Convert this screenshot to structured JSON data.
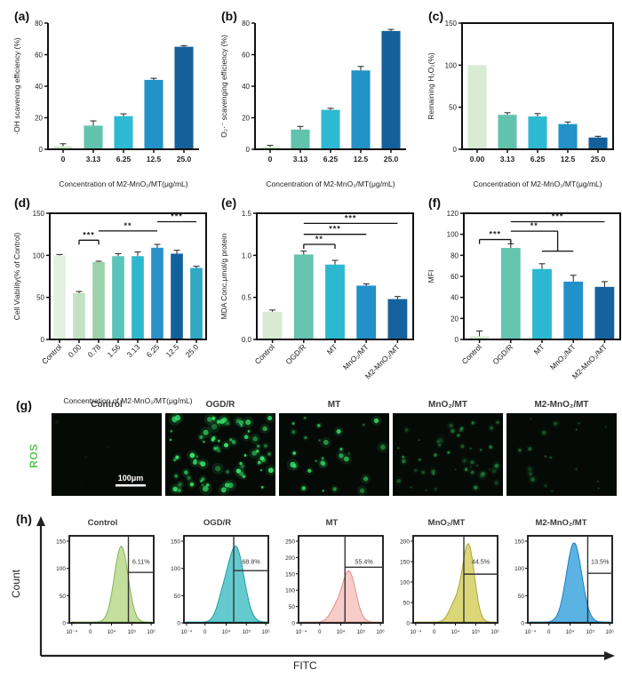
{
  "chart_data": [
    {
      "id": "a",
      "panel_letter": "(a)",
      "type": "bar",
      "title": "",
      "ylabel": "·OH scavening efficiency (%)",
      "xlabel": "Concentration of M2-MnO₂/MT(μg/mL)",
      "categories": [
        "0",
        "3.13",
        "6.25",
        "12.5",
        "25.0"
      ],
      "values": [
        2,
        15,
        21,
        44,
        65
      ],
      "errors": [
        1.5,
        3,
        1.5,
        1,
        0.7
      ],
      "ylim": [
        0,
        80
      ],
      "yticks": [
        0,
        20,
        40,
        60,
        80
      ],
      "bar_colors": [
        "#d3e8cf",
        "#62c3ad",
        "#2db9d2",
        "#2292c9",
        "#15609b"
      ],
      "boxed": false,
      "rotate_labels": false,
      "sig": []
    },
    {
      "id": "b",
      "panel_letter": "(b)",
      "type": "bar",
      "title": "",
      "ylabel": "O₂·⁻ scavenging efficiency (%)",
      "xlabel": "Concentration of M2-MnO₂/MT(μg/mL)",
      "categories": [
        "0",
        "3.13",
        "6.25",
        "12.5",
        "25.0"
      ],
      "values": [
        1.5,
        12.5,
        25,
        50,
        75
      ],
      "errors": [
        1,
        2,
        1,
        2.5,
        1
      ],
      "ylim": [
        0,
        80
      ],
      "yticks": [
        0,
        20,
        40,
        60,
        80
      ],
      "bar_colors": [
        "#d3e8cf",
        "#62c3ad",
        "#2db9d2",
        "#2292c9",
        "#15609b"
      ],
      "boxed": false,
      "rotate_labels": false,
      "sig": []
    },
    {
      "id": "c",
      "panel_letter": "(c)",
      "type": "bar",
      "title": "",
      "ylabel": "Remaining H₂O₂(%)",
      "xlabel": "Concentration of M2-MnO₂/MT(μg/mL)",
      "categories": [
        "0.00",
        "3.13",
        "6.25",
        "12.5",
        "25.0"
      ],
      "values": [
        100,
        41,
        39,
        30,
        14
      ],
      "errors": [
        0,
        2.5,
        3.5,
        2.5,
        1.5
      ],
      "ylim": [
        0,
        150
      ],
      "yticks": [
        0,
        50,
        100,
        150
      ],
      "bar_colors": [
        "#d8ecd4",
        "#62c3ad",
        "#2db9d2",
        "#2292c9",
        "#15609b"
      ],
      "boxed": true,
      "rotate_labels": false,
      "sig": []
    },
    {
      "id": "d",
      "panel_letter": "(d)",
      "type": "bar",
      "title": "",
      "ylabel": "Cell Viability(% of Control)",
      "xlabel": "Concentration of M2-MnO₂/MT(μg/mL)",
      "categories": [
        "Control",
        "0.00",
        "0.78",
        "1.56",
        "3.13",
        "6.25",
        "12.5",
        "25.0"
      ],
      "values": [
        100,
        55,
        92,
        99,
        99,
        109,
        102,
        85
      ],
      "errors": [
        1,
        2,
        1,
        3,
        5,
        4,
        4,
        2
      ],
      "ylim": [
        0,
        150
      ],
      "yticks": [
        0,
        50,
        100,
        150
      ],
      "bar_colors": [
        "#e4f0e2",
        "#c3e2c4",
        "#9dd1ab",
        "#5ac4b7",
        "#2eb6ce",
        "#2a90c8",
        "#11619d",
        "#2fa9c4"
      ],
      "boxed": true,
      "rotate_labels": true,
      "sig": [
        {
          "from": 1,
          "to": 2,
          "y": 118,
          "label": "***",
          "ticks": true
        },
        {
          "from": 2,
          "to": 5,
          "y": 129,
          "label": "**"
        },
        {
          "from": 5,
          "to": 7,
          "y": 140,
          "label": "***"
        }
      ]
    },
    {
      "id": "e",
      "panel_letter": "(e)",
      "type": "bar",
      "title": "",
      "ylabel": "MDA Conc.μmol/g protein",
      "xlabel": "",
      "categories": [
        "Control",
        "OGD/R",
        "MT",
        "MnO₂/MT",
        "M2-MnO₂/MT"
      ],
      "values": [
        0.33,
        1.01,
        0.89,
        0.64,
        0.48
      ],
      "errors": [
        0.02,
        0.04,
        0.05,
        0.02,
        0.03
      ],
      "ylim": [
        0,
        1.5
      ],
      "yticks": [
        0,
        0.5,
        1,
        1.5
      ],
      "ytick_labels": [
        "0.0",
        "0.5",
        "1.0",
        "1.5"
      ],
      "bar_colors": [
        "#d8ead2",
        "#65c5af",
        "#2cb8d0",
        "#2191c9",
        "#15629e"
      ],
      "boxed": true,
      "rotate_labels": true,
      "sig": [
        {
          "from": 1,
          "to": 2,
          "y": 1.13,
          "label": "**",
          "ticks": true
        },
        {
          "from": 1,
          "to": 3,
          "y": 1.25,
          "label": "***"
        },
        {
          "from": 1,
          "to": 4,
          "y": 1.38,
          "label": "***"
        }
      ]
    },
    {
      "id": "f",
      "panel_letter": "(f)",
      "type": "bar",
      "title": "",
      "ylabel": "MFI",
      "xlabel": "",
      "categories": [
        "Control",
        "OGD/R",
        "MT",
        "MnO₂/MT",
        "M2-MnO₂/MT"
      ],
      "values": [
        3,
        87,
        67,
        55,
        50
      ],
      "errors": [
        5,
        4,
        5,
        6,
        5
      ],
      "ylim": [
        0,
        120
      ],
      "yticks": [
        0,
        20,
        40,
        60,
        80,
        100,
        120
      ],
      "bar_colors": [
        "#d8ead2",
        "#65c5af",
        "#2cb8d0",
        "#2191c9",
        "#15629e"
      ],
      "boxed": true,
      "rotate_labels": true,
      "sig": [
        {
          "from": 0,
          "to": 1,
          "y": 95,
          "label": "***",
          "ticks": true
        },
        {
          "from": 1,
          "to": 2.5,
          "y": 103,
          "label": "**",
          "drop": {
            "to_y": 84,
            "span": [
              2,
              3
            ]
          }
        },
        {
          "from": 1,
          "to": 4,
          "y": 112,
          "label": "***"
        }
      ]
    },
    {
      "id": "h",
      "panel_letter": "(h)",
      "type": "flow-histograms",
      "xlabel": "FITC",
      "ylabel": "Count",
      "xtick_labels": [
        "10⁻⁴",
        "0",
        "10⁴",
        "10⁵",
        "10⁶"
      ],
      "plots": [
        {
          "label": "Control",
          "percent": "6.11%",
          "fill": "#bcd98f",
          "stroke": "#85b558",
          "yticks": [
            0,
            50,
            100,
            150
          ],
          "peak": 0.62,
          "sigma": 0.085,
          "peak_h": 0.93,
          "gate_x": 0.7,
          "gate_y": 0.42,
          "shoulder": false
        },
        {
          "label": "OGD/R",
          "percent": "68.8%",
          "fill": "#4fc3c7",
          "stroke": "#1f9ea4",
          "yticks": [
            0,
            50,
            100,
            150
          ],
          "peak": 0.62,
          "sigma": 0.1,
          "peak_h": 0.92,
          "gate_x": 0.59,
          "gate_y": 0.4,
          "shoulder": true
        },
        {
          "label": "MT",
          "percent": "55.4%",
          "fill": "#f6c5c1",
          "stroke": "#e18f89",
          "yticks": [
            0,
            50,
            100,
            150,
            200,
            250
          ],
          "peak": 0.6,
          "sigma": 0.085,
          "peak_h": 0.62,
          "gate_x": 0.55,
          "gate_y": 0.36,
          "shoulder": true
        },
        {
          "label": "MnO₂/MT",
          "percent": "44.5%",
          "fill": "#d6d267",
          "stroke": "#aaa63c",
          "yticks": [
            0,
            50,
            100,
            150,
            200
          ],
          "peak": 0.66,
          "sigma": 0.075,
          "peak_h": 0.95,
          "gate_x": 0.6,
          "gate_y": 0.44,
          "shoulder": true
        },
        {
          "label": "M2-MnO₂/MT",
          "percent": "13.5%",
          "fill": "#44a9df",
          "stroke": "#1d7fba",
          "yticks": [
            0,
            50,
            100,
            150
          ],
          "peak": 0.55,
          "sigma": 0.095,
          "peak_h": 0.97,
          "gate_x": 0.71,
          "gate_y": 0.43,
          "shoulder": false
        }
      ]
    }
  ],
  "ros_row": {
    "panel_letter": "(g)",
    "row_label": "ROS",
    "row_label_color": "#5cc656",
    "scale_bar_label": "100μm",
    "images": [
      {
        "label": "Control",
        "dot_count": 6,
        "brightness": 0.25
      },
      {
        "label": "OGD/R",
        "dot_count": 75,
        "brightness": 1.0
      },
      {
        "label": "MT",
        "dot_count": 28,
        "brightness": 0.9
      },
      {
        "label": "MnO₂/MT",
        "dot_count": 48,
        "brightness": 0.6
      },
      {
        "label": "M2-MnO₂/MT",
        "dot_count": 18,
        "brightness": 0.55
      }
    ]
  }
}
